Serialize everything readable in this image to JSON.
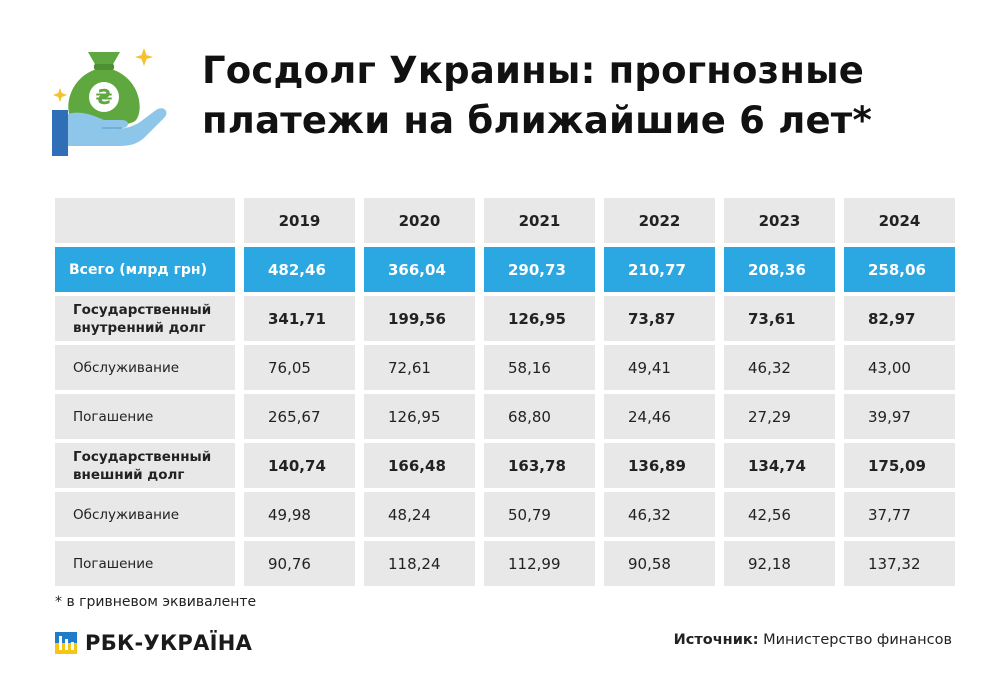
{
  "header": {
    "title_line1": "Госдолг Украины: прогнозные",
    "title_line2": "платежи на ближайшие 6 лет*",
    "icon": "money-bag-hand-icon",
    "icon_symbol": "₴"
  },
  "colors": {
    "accent": "#2ba7e2",
    "cell_bg": "#e8e8e8",
    "bag_green": "#5fa83f",
    "hand_blue": "#8ec6ea",
    "sparkle_yellow": "#f2c230",
    "logo_blue": "#1e7cc8",
    "logo_yellow": "#f5c518"
  },
  "chart_data": {
    "type": "table",
    "title": "Госдолг Украины: прогнозные платежи на ближайшие 6 лет*",
    "columns": [
      "2019",
      "2020",
      "2021",
      "2022",
      "2023",
      "2024"
    ],
    "rows": [
      {
        "label": "Всего (млрд грн)",
        "values": [
          "482,46",
          "366,04",
          "290,73",
          "210,77",
          "208,36",
          "258,06"
        ],
        "style": "total"
      },
      {
        "label": "Государственный внутренний долг",
        "values": [
          "341,71",
          "199,56",
          "126,95",
          "73,87",
          "73,61",
          "82,97"
        ],
        "style": "bold"
      },
      {
        "label": "Обслуживание",
        "values": [
          "76,05",
          "72,61",
          "58,16",
          "49,41",
          "46,32",
          "43,00"
        ],
        "style": "normal"
      },
      {
        "label": "Погашение",
        "values": [
          "265,67",
          "126,95",
          "68,80",
          "24,46",
          "27,29",
          "39,97"
        ],
        "style": "normal"
      },
      {
        "label": "Государственный внешний долг",
        "values": [
          "140,74",
          "166,48",
          "163,78",
          "136,89",
          "134,74",
          "175,09"
        ],
        "style": "bold"
      },
      {
        "label": "Обслуживание",
        "values": [
          "49,98",
          "48,24",
          "50,79",
          "46,32",
          "42,56",
          "37,77"
        ],
        "style": "normal"
      },
      {
        "label": "Погашение",
        "values": [
          "90,76",
          "118,24",
          "112,99",
          "90,58",
          "92,18",
          "137,32"
        ],
        "style": "normal"
      }
    ]
  },
  "footnote": "* в гривневом эквиваленте",
  "logo": {
    "text": "РБК-УКРАЇНА",
    "icon": "rbc-logo-icon"
  },
  "source": {
    "label": "Источник:",
    "value": "Министерство финансов"
  }
}
